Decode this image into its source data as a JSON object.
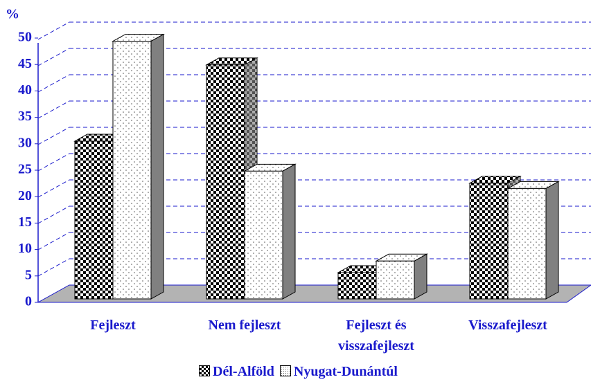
{
  "chart_data": {
    "type": "bar3d",
    "ylabel": "%",
    "categories": [
      "Fejleszt",
      "Nem fejleszt",
      "Fejleszt és visszafejleszt",
      "Visszafejleszt"
    ],
    "series": [
      {
        "name": "Dél-Alföld",
        "color": "#000000",
        "values": [
          30,
          44.5,
          5,
          22
        ]
      },
      {
        "name": "Nyugat-Dunántúl",
        "color": "#555555",
        "values": [
          49,
          24.3,
          7.2,
          21
        ]
      }
    ],
    "ylim": [
      0,
      50
    ],
    "yticks": [
      0,
      5,
      10,
      15,
      20,
      25,
      30,
      35,
      40,
      45,
      50
    ],
    "grid": true
  }
}
